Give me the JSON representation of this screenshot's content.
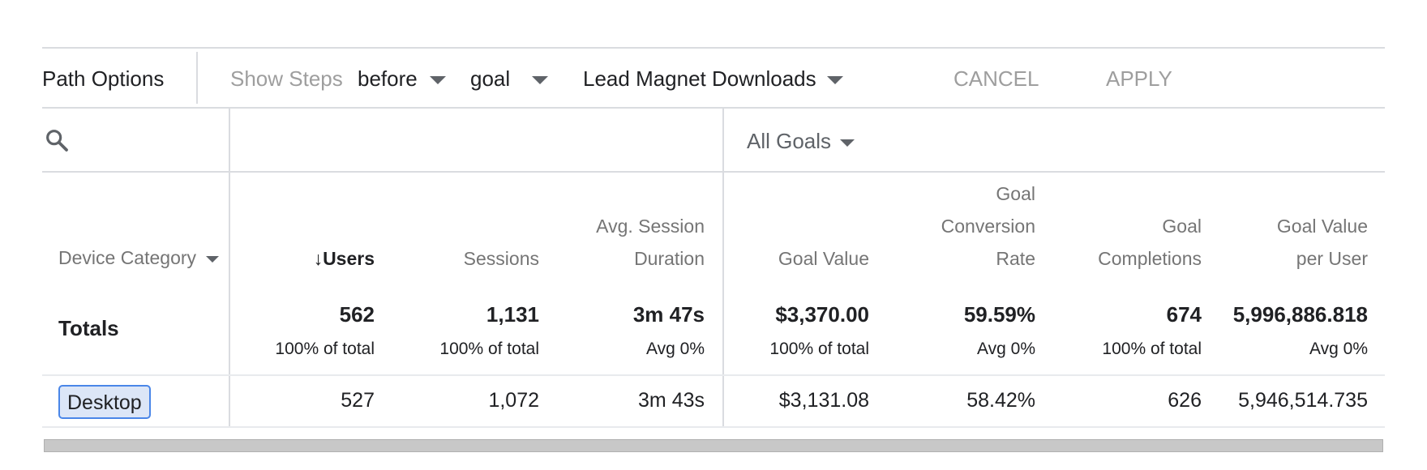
{
  "toolbar": {
    "path_options_label": "Path Options",
    "show_steps_label": "Show Steps",
    "steps_value": "before",
    "node_type_value": "goal",
    "goal_value": "Lead Magnet Downloads",
    "cancel_label": "CANCEL",
    "apply_label": "APPLY"
  },
  "filter": {
    "all_goals_label": "All Goals"
  },
  "table": {
    "dimension_header": "Device Category",
    "columns": [
      {
        "lines": [
          "↓Users"
        ],
        "sorted": true
      },
      {
        "lines": [
          "Sessions"
        ]
      },
      {
        "lines": [
          "Avg. Session",
          "Duration"
        ]
      },
      {
        "lines": [
          "Goal Value"
        ]
      },
      {
        "lines": [
          "Goal",
          "Conversion",
          "Rate"
        ]
      },
      {
        "lines": [
          "Goal",
          "Completions"
        ]
      },
      {
        "lines": [
          "Goal Value",
          "per User"
        ]
      }
    ],
    "totals_label": "Totals",
    "totals": [
      {
        "value": "562",
        "sub": "100% of total"
      },
      {
        "value": "1,131",
        "sub": "100% of total"
      },
      {
        "value": "3m 47s",
        "sub": "Avg 0%"
      },
      {
        "value": "$3,370.00",
        "sub": "100% of total"
      },
      {
        "value": "59.59%",
        "sub": "Avg 0%"
      },
      {
        "value": "674",
        "sub": "100% of total"
      },
      {
        "value": "5,996,886.818",
        "sub": "Avg 0%"
      }
    ],
    "rows": [
      {
        "label": "Desktop",
        "values": [
          "527",
          "1,072",
          "3m 43s",
          "$3,131.08",
          "58.42%",
          "626",
          "5,946,514.735"
        ]
      }
    ]
  }
}
